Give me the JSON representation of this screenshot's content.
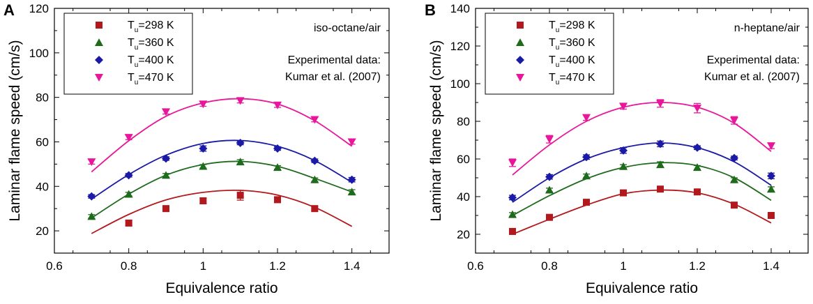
{
  "chart_data": [
    {
      "type": "scatter",
      "panel_label": "A",
      "mixture_label": "iso-octane/air",
      "annotation_lines": [
        "Experimental data:",
        "Kumar et al. (2007)"
      ],
      "xlabel": "Equivalence ratio",
      "ylabel": "Laminar flame speed (cm/s)",
      "xlim": [
        0.6,
        1.5
      ],
      "ylim": [
        10,
        120
      ],
      "xticks": [
        0.6,
        0.8,
        1,
        1.2,
        1.4
      ],
      "yticks": [
        20,
        40,
        60,
        80,
        100,
        120
      ],
      "legend_position": "top-left",
      "series": [
        {
          "name": "Tu=298 K",
          "label_main": "T",
          "label_sub": "u",
          "label_rest": "=298 K",
          "marker": "square",
          "color": "#b3191c",
          "x": [
            0.8,
            0.9,
            1.0,
            1.1,
            1.2,
            1.3
          ],
          "y": [
            23.5,
            30,
            33.5,
            36,
            34,
            30
          ],
          "err": [
            1.2,
            1.2,
            1.2,
            2.2,
            1.2,
            1.0
          ],
          "curve_x": [
            0.7,
            0.8,
            0.9,
            1.0,
            1.1,
            1.2,
            1.3,
            1.4
          ],
          "curve_y": [
            18.8,
            27.4,
            33.9,
            37.3,
            38.2,
            36.1,
            30.6,
            22.0
          ]
        },
        {
          "name": "Tu=360 K",
          "label_main": "T",
          "label_sub": "u",
          "label_rest": "=360 K",
          "marker": "triangle-up",
          "color": "#1e6b1c",
          "x": [
            0.7,
            0.8,
            0.9,
            1.0,
            1.1,
            1.2,
            1.3,
            1.4
          ],
          "y": [
            26.5,
            36.5,
            45,
            49,
            51,
            48.5,
            43,
            37.5
          ],
          "err": [
            0.8,
            0.8,
            0.8,
            0.8,
            1.0,
            0.8,
            0.8,
            1.0
          ],
          "curve_x": [
            0.7,
            0.8,
            0.9,
            1.0,
            1.1,
            1.2,
            1.3,
            1.4
          ],
          "curve_y": [
            25.8,
            36.5,
            45.0,
            49.8,
            51.2,
            49.0,
            43.6,
            37.5
          ]
        },
        {
          "name": "Tu=400 K",
          "label_main": "T",
          "label_sub": "u",
          "label_rest": "=400 K",
          "marker": "diamond",
          "color": "#1a1aa6",
          "x": [
            0.7,
            0.8,
            0.9,
            1.0,
            1.1,
            1.2,
            1.3,
            1.4
          ],
          "y": [
            35.5,
            45,
            52.5,
            57,
            59.5,
            57,
            51.5,
            43
          ],
          "err": [
            0.8,
            0.8,
            0.8,
            1.2,
            0.8,
            0.8,
            0.8,
            1.0
          ],
          "curve_x": [
            0.7,
            0.8,
            0.9,
            1.0,
            1.1,
            1.2,
            1.3,
            1.4
          ],
          "curve_y": [
            34.3,
            45.3,
            54.0,
            59.3,
            60.6,
            58.0,
            51.6,
            41.8
          ]
        },
        {
          "name": "Tu=470 K",
          "label_main": "T",
          "label_sub": "u",
          "label_rest": "=470 K",
          "marker": "triangle-down",
          "color": "#e8169a",
          "x": [
            0.7,
            0.8,
            0.9,
            1.0,
            1.1,
            1.2,
            1.3,
            1.4
          ],
          "y": [
            51,
            62,
            73.5,
            77,
            78.5,
            76.5,
            70,
            60
          ],
          "err": [
            1.0,
            1.0,
            1.0,
            1.0,
            1.0,
            1.0,
            1.0,
            1.0
          ],
          "curve_x": [
            0.7,
            0.8,
            0.9,
            1.0,
            1.1,
            1.2,
            1.3,
            1.4
          ],
          "curve_y": [
            46.5,
            60.5,
            71.5,
            77.5,
            79.4,
            77.0,
            69.5,
            58.0
          ]
        }
      ]
    },
    {
      "type": "scatter",
      "panel_label": "B",
      "mixture_label": "n-heptane/air",
      "annotation_lines": [
        "Experimental data:",
        "Kumar et al. (2007)"
      ],
      "xlabel": "Equivalence ratio",
      "ylabel": "Laminar flame speed (cm/s)",
      "xlim": [
        0.6,
        1.5
      ],
      "ylim": [
        10,
        140
      ],
      "xticks": [
        0.6,
        0.8,
        1,
        1.2,
        1.4
      ],
      "yticks": [
        20,
        40,
        60,
        80,
        100,
        120,
        140
      ],
      "legend_position": "top-left",
      "series": [
        {
          "name": "Tu=298 K",
          "label_main": "T",
          "label_sub": "u",
          "label_rest": "=298 K",
          "marker": "square",
          "color": "#b3191c",
          "x": [
            0.7,
            0.8,
            0.9,
            1.0,
            1.1,
            1.2,
            1.3,
            1.4
          ],
          "y": [
            21.5,
            29,
            37,
            42,
            44,
            42.5,
            35.5,
            30
          ],
          "err": [
            1.0,
            1.0,
            1.5,
            1.2,
            1.5,
            1.0,
            1.2,
            1.2
          ],
          "curve_x": [
            0.7,
            0.8,
            0.9,
            1.0,
            1.1,
            1.2,
            1.3,
            1.4
          ],
          "curve_y": [
            20.0,
            28.0,
            35.5,
            41.5,
            43.5,
            42.0,
            36.0,
            26.0
          ]
        },
        {
          "name": "Tu=360 K",
          "label_main": "T",
          "label_sub": "u",
          "label_rest": "=360 K",
          "marker": "triangle-up",
          "color": "#1e6b1c",
          "x": [
            0.7,
            0.8,
            0.9,
            1.0,
            1.1,
            1.2,
            1.3,
            1.4
          ],
          "y": [
            30.5,
            43.5,
            51,
            56,
            57,
            55.5,
            49,
            44
          ],
          "err": [
            1.0,
            1.0,
            1.0,
            1.0,
            1.5,
            1.0,
            1.0,
            1.2
          ],
          "curve_x": [
            0.7,
            0.8,
            0.9,
            1.0,
            1.1,
            1.2,
            1.3,
            1.4
          ],
          "curve_y": [
            30.0,
            40.5,
            49.5,
            55.5,
            58.0,
            56.5,
            50.0,
            38.0
          ]
        },
        {
          "name": "Tu=400 K",
          "label_main": "T",
          "label_sub": "u",
          "label_rest": "=400 K",
          "marker": "diamond",
          "color": "#1a1aa6",
          "x": [
            0.7,
            0.8,
            0.9,
            1.0,
            1.1,
            1.2,
            1.3,
            1.4
          ],
          "y": [
            39.5,
            50.5,
            61,
            64.5,
            68,
            66,
            60.5,
            51
          ],
          "err": [
            1.2,
            1.2,
            1.2,
            1.5,
            1.5,
            1.0,
            1.0,
            1.5
          ],
          "curve_x": [
            0.7,
            0.8,
            0.9,
            1.0,
            1.1,
            1.2,
            1.3,
            1.4
          ],
          "curve_y": [
            37.0,
            50.0,
            60.0,
            66.0,
            68.5,
            66.0,
            58.5,
            46.0
          ]
        },
        {
          "name": "Tu=470 K",
          "label_main": "T",
          "label_sub": "u",
          "label_rest": "=470 K",
          "marker": "triangle-down",
          "color": "#e8169a",
          "x": [
            0.7,
            0.8,
            0.9,
            1.0,
            1.1,
            1.2,
            1.3,
            1.4
          ],
          "y": [
            58,
            70.5,
            82,
            88,
            89.5,
            87,
            80.5,
            67
          ],
          "err": [
            2.0,
            2.0,
            1.5,
            1.5,
            2.0,
            2.5,
            2.0,
            1.5
          ],
          "curve_x": [
            0.7,
            0.8,
            0.9,
            1.0,
            1.1,
            1.2,
            1.3,
            1.4
          ],
          "curve_y": [
            51.5,
            67.5,
            80.0,
            87.5,
            90.0,
            87.5,
            79.0,
            64.0
          ]
        }
      ]
    }
  ]
}
